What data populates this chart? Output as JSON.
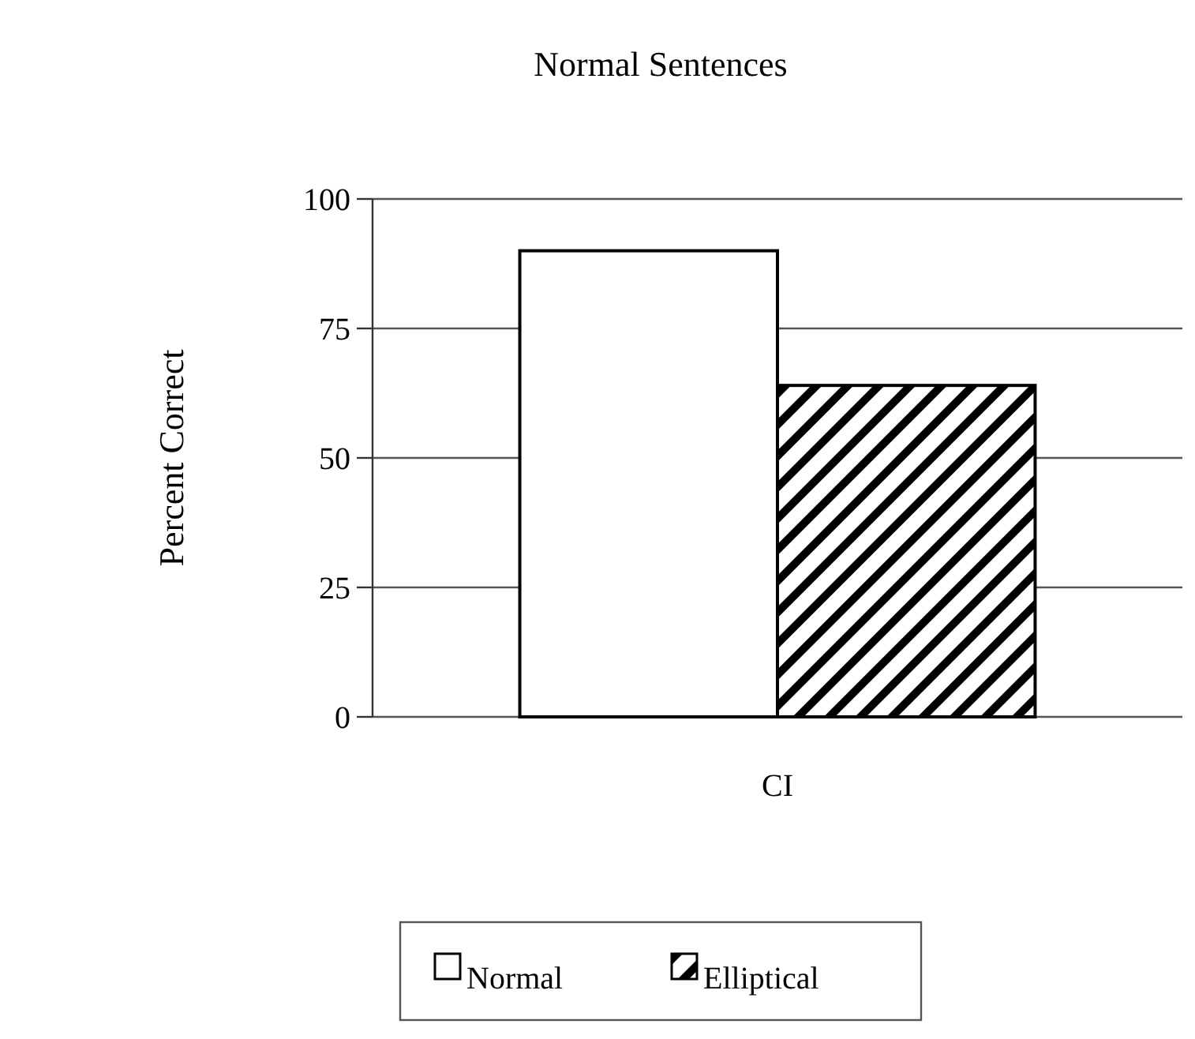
{
  "chart_data": {
    "type": "bar",
    "title": "Normal Sentences",
    "ylabel": "Percent Correct",
    "categories": [
      "CI"
    ],
    "series": [
      {
        "name": "Normal",
        "color": "#ffffff",
        "values": [
          90
        ]
      },
      {
        "name": "Elliptical",
        "color": "#000000",
        "values": [
          64
        ]
      }
    ],
    "ylim": [
      0,
      100
    ],
    "yticks": [
      0,
      25,
      50,
      75,
      100
    ],
    "grid": "y",
    "legend": "bottom"
  }
}
